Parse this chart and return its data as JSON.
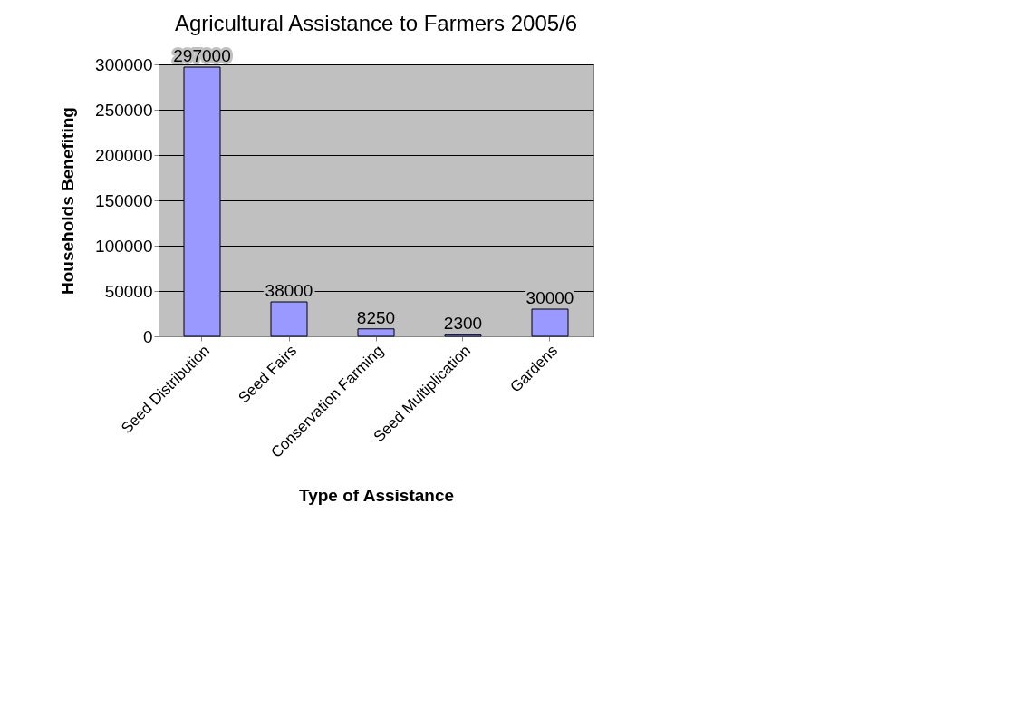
{
  "chart_data": {
    "type": "bar",
    "title": "Agricultural Assistance to Farmers 2005/6",
    "xlabel": "Type of Assistance",
    "ylabel": "Households Benefiting",
    "categories": [
      "Seed Distribution",
      "Seed Fairs",
      "Conservation Farming",
      "Seed Multiplication",
      "Gardens"
    ],
    "values": [
      297000,
      38000,
      8250,
      2300,
      30000
    ],
    "color": "#9999ff",
    "ylim": [
      0,
      300000
    ],
    "yticks": [
      0,
      50000,
      100000,
      150000,
      200000,
      250000,
      300000
    ],
    "grid": "y",
    "data_labels": true
  }
}
